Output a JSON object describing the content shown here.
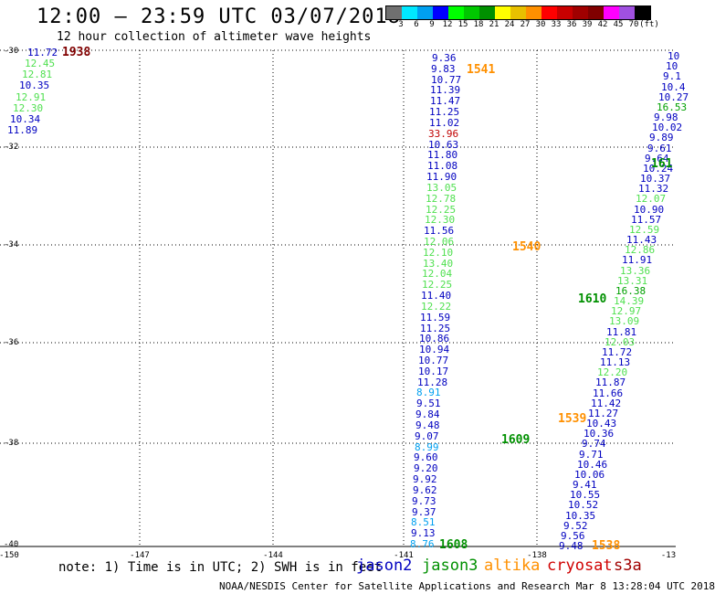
{
  "header": {
    "title": "12:00 – 23:59 UTC 03/07/2018",
    "subtitle": "12 hour collection of altimeter wave heights"
  },
  "scale": {
    "colors": [
      "#707070",
      "#00e8ff",
      "#00a0f0",
      "#0000ff",
      "#00ff00",
      "#00c800",
      "#009000",
      "#ffff00",
      "#e8c000",
      "#ff9000",
      "#ff0000",
      "#c80000",
      "#a00000",
      "#800000",
      "#ff00ff",
      "#a050e0",
      "#000000"
    ],
    "labels": [
      "3",
      "6",
      "9",
      "12",
      "15",
      "18",
      "21",
      "24",
      "27",
      "30",
      "33",
      "36",
      "39",
      "42",
      "45",
      "70",
      "(ft)"
    ]
  },
  "axes": {
    "y_labels": [
      "-30",
      "-32",
      "-34",
      "-36",
      "-38",
      "-40"
    ],
    "x_labels": [
      "-150",
      "-147",
      "-144",
      "-141",
      "-138",
      "-13"
    ]
  },
  "note": "note: 1) Time is in UTC; 2) SWH is in feet",
  "satellites": [
    {
      "name": "jason2",
      "color": "#0000c0"
    },
    {
      "name": "jason3",
      "color": "#009000"
    },
    {
      "name": "altika",
      "color": "#ff9000"
    },
    {
      "name": "cryosat",
      "color": "#d00000"
    },
    {
      "name": "s3a",
      "color": "#a00000"
    }
  ],
  "footer": "NOAA/NESDIS Center for Satellite Applications and Research    Mar  8 13:28:04 UTC 2018",
  "times": [
    {
      "text": "1938",
      "color": "#800000"
    },
    {
      "text": "1541",
      "color": "#ff9000"
    },
    {
      "text": "1540",
      "color": "#ff9000"
    },
    {
      "text": "1539",
      "color": "#ff9000"
    },
    {
      "text": "1538",
      "color": "#ff9000"
    },
    {
      "text": "1610",
      "color": "#009000"
    },
    {
      "text": "1609",
      "color": "#009000"
    },
    {
      "text": "1608",
      "color": "#009000"
    },
    {
      "text": "161",
      "color": "#009000"
    }
  ],
  "obs": {
    "track1938": [
      "11.72",
      "12.45",
      "12.81",
      "10.35",
      "12.91",
      "12.30",
      "10.34",
      "11.89"
    ],
    "track1541": [
      "9.36",
      "9.83",
      "10.77",
      "11.39",
      "11.47",
      "11.25",
      "11.02",
      "33.96",
      "10.63",
      "11.80",
      "11.08",
      "11.90",
      "13.05",
      "12.78",
      "12.25",
      "12.30",
      "11.56",
      "12.06",
      "12.10",
      "13.40",
      "12.04",
      "12.25",
      "11.40",
      "12.22",
      "11.59",
      "11.25",
      "10.86",
      "10.94",
      "10.77",
      "10.17",
      "11.28",
      "8.91",
      "9.51",
      "9.84",
      "9.48",
      "9.07",
      "8.99",
      "9.60",
      "9.20",
      "9.92",
      "9.62",
      "9.73",
      "9.37",
      "8.51",
      "9.13",
      "8.76"
    ],
    "track161": [
      "10",
      "10",
      "9.1",
      "10.4",
      "10.27",
      "16.53",
      "9.98",
      "10.02",
      "9.89",
      "9.61",
      "9.64",
      "10.24",
      "10.37",
      "11.32",
      "12.07",
      "10.90",
      "11.57",
      "12.59",
      "11.43",
      "12.86",
      "11.91",
      "13.36",
      "13.31",
      "16.38",
      "14.39",
      "12.97",
      "13.09",
      "11.81",
      "12.03",
      "11.72",
      "11.13",
      "12.20",
      "11.87",
      "11.66",
      "11.42",
      "11.27",
      "10.43",
      "10.36",
      "9.74",
      "9.71",
      "10.46",
      "10.06",
      "9.41",
      "10.55",
      "10.52",
      "10.35",
      "9.52",
      "9.56",
      "9.48"
    ]
  }
}
